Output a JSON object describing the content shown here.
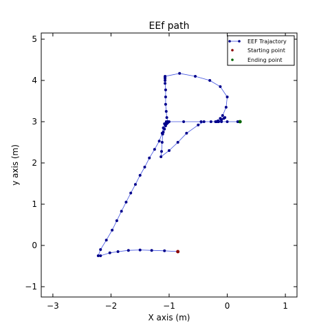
{
  "chart_data": {
    "type": "line",
    "title": "EEf path",
    "xlabel": "X axis (m)",
    "ylabel": "y axis (m)",
    "xlim": [
      -3.2,
      1.2
    ],
    "ylim": [
      -1.25,
      5.15
    ],
    "xticks": [
      -3,
      -2,
      -1,
      0,
      1
    ],
    "yticks": [
      -1,
      0,
      1,
      2,
      3,
      4,
      5
    ],
    "xtick_labels": [
      "−3",
      "−2",
      "−1",
      "0",
      "1"
    ],
    "ytick_labels": [
      "−1",
      "0",
      "1",
      "2",
      "3",
      "4",
      "5"
    ],
    "grid": false,
    "legend_position": "top-right",
    "colors": {
      "trajectory": "#00008b",
      "trajectory_line": "#3d4fe0",
      "start": "#8b0000",
      "end": "#006400"
    },
    "series": [
      {
        "name": "EEF Trajactory",
        "marker": "dot-line",
        "x": [
          -0.85,
          -1.08,
          -1.3,
          -1.5,
          -1.7,
          -1.88,
          -2.02,
          -2.18,
          -2.22,
          -2.18,
          -2.08,
          -1.98,
          -1.9,
          -1.82,
          -1.74,
          -1.66,
          -1.58,
          -1.5,
          -1.42,
          -1.34,
          -1.25,
          -1.17,
          -1.12,
          -1.1,
          -1.08,
          -1.05,
          -1.03,
          -1.02,
          -1.04,
          -1.05,
          -1.06,
          -1.06,
          -1.06,
          -1.07,
          -1.07,
          -1.07,
          -1.07,
          -1.07,
          -0.82,
          -0.55,
          -0.3,
          -0.12,
          0.0,
          -0.02,
          -0.08,
          -0.12,
          -0.16,
          -0.2,
          -0.18,
          -0.1,
          -0.06,
          -0.04,
          -0.1,
          -0.15,
          -0.18,
          -0.15,
          -0.1,
          -0.28,
          -0.4,
          -0.5,
          -0.7,
          -0.85,
          -1.0,
          -1.14,
          -1.13,
          -1.12,
          -1.11,
          -1.1,
          -1.08,
          -1.06,
          -1.04,
          -1.02,
          -1.0,
          -0.75,
          -0.45,
          -0.2,
          0.0,
          0.18,
          0.2,
          0.22
        ],
        "y": [
          -0.15,
          -0.13,
          -0.12,
          -0.11,
          -0.12,
          -0.15,
          -0.18,
          -0.25,
          -0.25,
          -0.1,
          0.13,
          0.37,
          0.6,
          0.83,
          1.05,
          1.27,
          1.48,
          1.7,
          1.9,
          2.12,
          2.33,
          2.53,
          2.72,
          2.85,
          2.95,
          3.0,
          3.0,
          2.98,
          3.1,
          3.25,
          3.42,
          3.6,
          3.77,
          3.93,
          4.0,
          4.05,
          4.08,
          4.1,
          4.17,
          4.1,
          4.0,
          3.85,
          3.6,
          3.35,
          3.15,
          3.08,
          3.02,
          3.0,
          3.0,
          3.05,
          3.08,
          3.1,
          3.05,
          3.0,
          3.0,
          3.0,
          3.0,
          3.0,
          3.0,
          2.92,
          2.72,
          2.5,
          2.3,
          2.15,
          2.28,
          2.5,
          2.7,
          2.75,
          2.82,
          2.9,
          2.95,
          3.0,
          3.0,
          3.0,
          3.0,
          3.0,
          3.0,
          3.0,
          3.0,
          3.0
        ]
      },
      {
        "name": "Starting point",
        "marker": "dot",
        "x": [
          -0.85
        ],
        "y": [
          -0.15
        ]
      },
      {
        "name": "Ending point",
        "marker": "dot",
        "x": [
          0.22
        ],
        "y": [
          3.0
        ]
      }
    ]
  }
}
